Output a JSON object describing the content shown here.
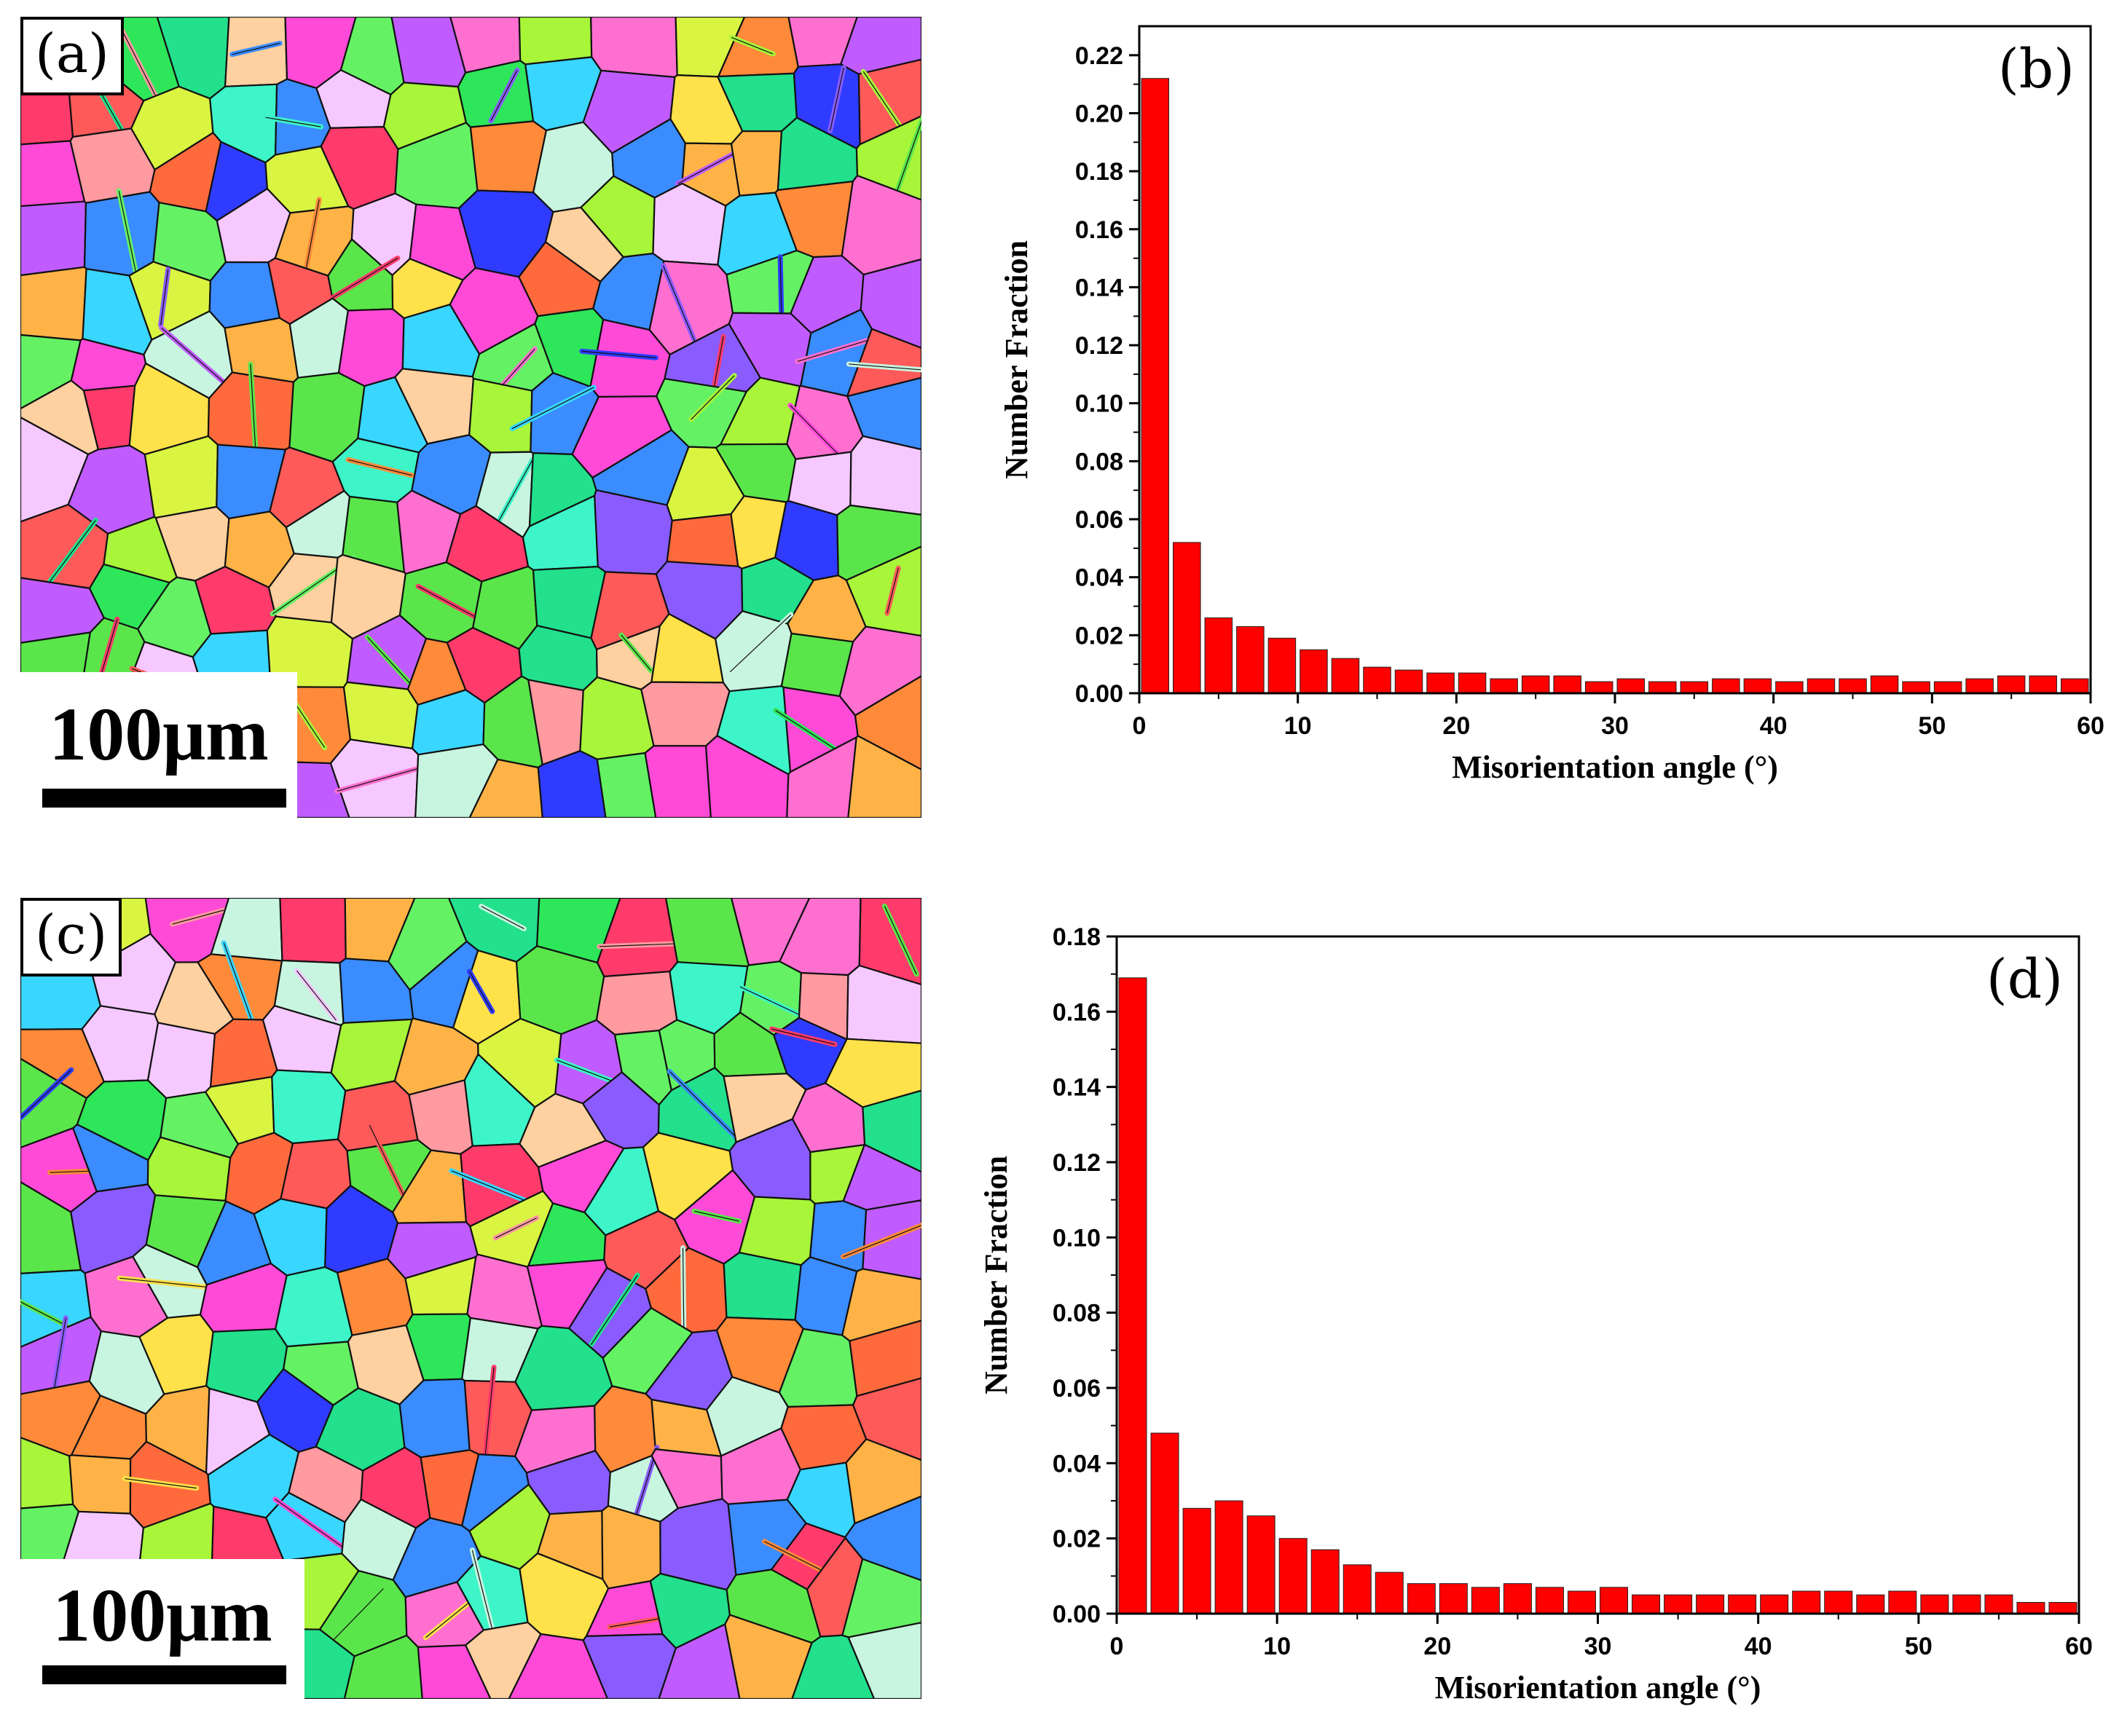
{
  "panels": {
    "a": {
      "label": "(a)",
      "scale_bar": "100μm"
    },
    "c": {
      "label": "(c)",
      "scale_bar": "100μm"
    }
  },
  "chart_data": [
    {
      "type": "bar",
      "panel_label": "(b)",
      "xlabel": "Misorientation angle (°)",
      "ylabel": "Number Fraction",
      "xlim": [
        0,
        60
      ],
      "ylim": [
        0,
        0.23
      ],
      "xticks": [
        "0",
        "10",
        "20",
        "30",
        "40",
        "50",
        "60"
      ],
      "yticks": [
        "0.00",
        "0.02",
        "0.04",
        "0.06",
        "0.08",
        "0.10",
        "0.12",
        "0.14",
        "0.16",
        "0.18",
        "0.20",
        "0.22"
      ],
      "bin_width": 2,
      "x": [
        1,
        3,
        5,
        7,
        9,
        11,
        13,
        15,
        17,
        19,
        21,
        23,
        25,
        27,
        29,
        31,
        33,
        35,
        37,
        39,
        41,
        43,
        45,
        47,
        49,
        51,
        53,
        55,
        57,
        59
      ],
      "values": [
        0.212,
        0.052,
        0.026,
        0.023,
        0.019,
        0.015,
        0.012,
        0.009,
        0.008,
        0.007,
        0.007,
        0.005,
        0.006,
        0.006,
        0.004,
        0.005,
        0.004,
        0.004,
        0.005,
        0.005,
        0.004,
        0.005,
        0.005,
        0.006,
        0.004,
        0.004,
        0.005,
        0.006,
        0.006,
        0.005
      ],
      "color": "#ff0000"
    },
    {
      "type": "bar",
      "panel_label": "(d)",
      "xlabel": "Misorientation angle (°)",
      "ylabel": "Number Fraction",
      "xlim": [
        0,
        60
      ],
      "ylim": [
        0,
        0.18
      ],
      "xticks": [
        "0",
        "10",
        "20",
        "30",
        "40",
        "50",
        "60"
      ],
      "yticks": [
        "0.00",
        "0.02",
        "0.04",
        "0.06",
        "0.08",
        "0.10",
        "0.12",
        "0.14",
        "0.16",
        "0.18"
      ],
      "bin_width": 2,
      "x": [
        1,
        3,
        5,
        7,
        9,
        11,
        13,
        15,
        17,
        19,
        21,
        23,
        25,
        27,
        29,
        31,
        33,
        35,
        37,
        39,
        41,
        43,
        45,
        47,
        49,
        51,
        53,
        55,
        57,
        59
      ],
      "values": [
        0.169,
        0.048,
        0.028,
        0.03,
        0.026,
        0.02,
        0.017,
        0.013,
        0.011,
        0.008,
        0.008,
        0.007,
        0.008,
        0.007,
        0.006,
        0.007,
        0.005,
        0.005,
        0.005,
        0.005,
        0.005,
        0.006,
        0.006,
        0.005,
        0.006,
        0.005,
        0.005,
        0.005,
        0.003,
        0.003
      ],
      "color": "#ff0000"
    }
  ]
}
